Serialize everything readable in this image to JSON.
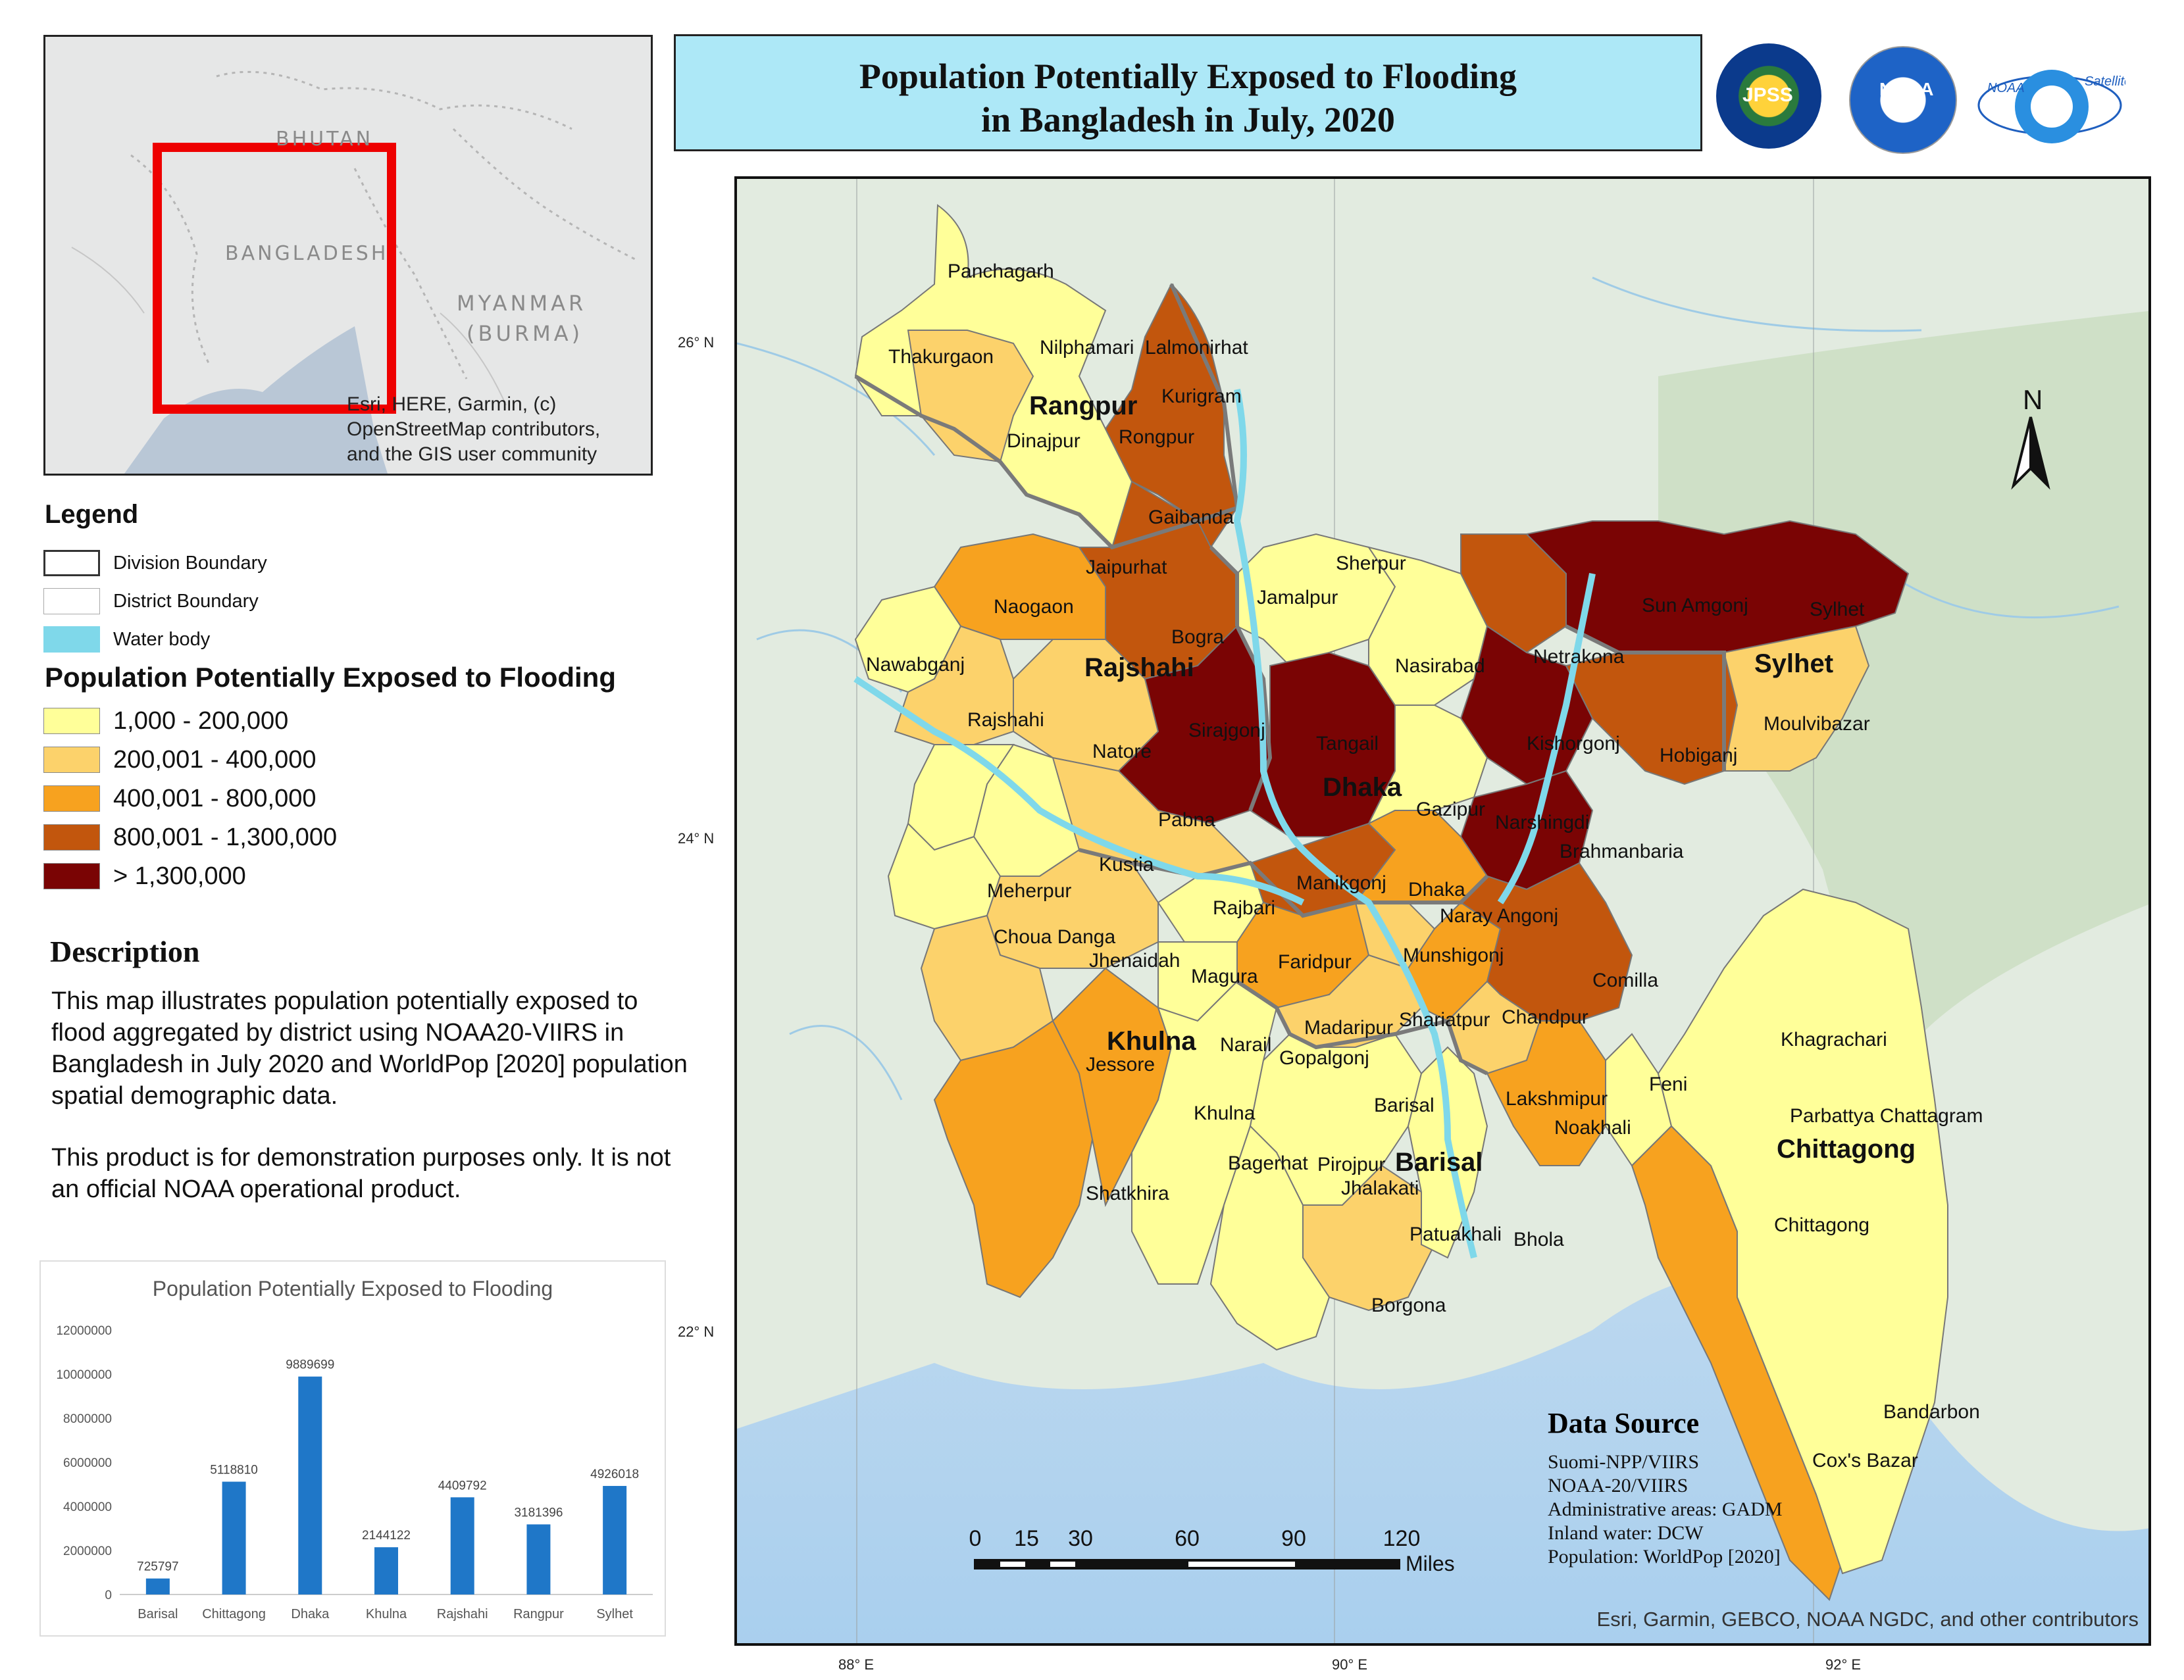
{
  "inset": {
    "labels": {
      "bhutan": "BHUTAN",
      "bangladesh": "BANGLADESH",
      "myanmar": "MYANMAR",
      "burma": "(BURMA)"
    },
    "attribution": [
      "Esri, HERE, Garmin, (c)",
      "OpenStreetMap contributors,",
      "and the GIS user community"
    ]
  },
  "legend": {
    "title": "Legend",
    "items": [
      {
        "label": "Division Boundary",
        "color": "#ffffff"
      },
      {
        "label": "District Boundary",
        "color": "#ffffff"
      },
      {
        "label": "Water body",
        "color": "#7fd8ea"
      }
    ],
    "pop_title": "Population Potentially Exposed to Flooding",
    "classes": [
      {
        "label": "1,000 - 200,000",
        "color": "#ffff99"
      },
      {
        "label": "200,001 - 400,000",
        "color": "#fcd26b"
      },
      {
        "label": "400,001 - 800,000",
        "color": "#f7a21f"
      },
      {
        "label": "800,001 - 1,300,000",
        "color": "#c2560d"
      },
      {
        "label": "> 1,300,000",
        "color": "#7a0404"
      }
    ]
  },
  "description": {
    "title": "Description",
    "para1": "This map illustrates population potentially exposed to flood aggregated by district using NOAA20-VIIRS in Bangladesh in July 2020 and WorldPop [2020] population spatial demographic data.",
    "para2": "This product is for demonstration purposes only. It is not an official NOAA operational  product."
  },
  "header": {
    "title_line1": "Population Potentially Exposed to Flooding",
    "title_line2": "in Bangladesh in July, 2020",
    "logos": [
      "JPSS",
      "NOAA",
      "NOAA Satellite Proving Ground"
    ]
  },
  "map": {
    "lat_labels": [
      "26° N",
      "24° N",
      "22° N"
    ],
    "lon_labels": [
      "88° E",
      "90° E",
      "92° E"
    ],
    "north": "N",
    "scale": {
      "ticks": [
        "0",
        "15",
        "30",
        "60",
        "90",
        "120"
      ],
      "unit": "Miles"
    },
    "divisions": [
      "Rangpur",
      "Rajshahi",
      "Sylhet",
      "Dhaka",
      "Khulna",
      "Barisal",
      "Chittagong"
    ],
    "districts": [
      "Panchagarh",
      "Thakurgaon",
      "Nilphamari",
      "Lalmonirhat",
      "Kurigram",
      "Dinajpur",
      "Rongpur",
      "Gaibanda",
      "Jaipurhat",
      "Sherpur",
      "Naogaon",
      "Jamalpur",
      "Sun Amgonj",
      "Sylhet",
      "Nawabganj",
      "Bogra",
      "Netrakona",
      "Nasirabad",
      "Rajshahi",
      "Sirajgonj",
      "Tangail",
      "Kishorgonj",
      "Hobiganj",
      "Moulvibazar",
      "Natore",
      "Gazipur",
      "Narshingdi",
      "Pabna",
      "Brahmanbaria",
      "Kustia",
      "Manikgonj",
      "Dhaka",
      "Meherpur",
      "Rajbari",
      "Naray Angonj",
      "Choua Danga",
      "Faridpur",
      "Munshigonj",
      "Jhenaidah",
      "Magura",
      "Comilla",
      "Chandpur",
      "Madaripur",
      "Shariatpur",
      "Narail",
      "Gopalgonj",
      "Jessore",
      "Khagrachari",
      "Lakshmipur",
      "Feni",
      "Barisal",
      "Noakhali",
      "Khulna",
      "Parbattya Chattagram",
      "Bagerhat",
      "Pirojpur",
      "Jhalakati",
      "Shatkhira",
      "Patuakhali",
      "Bhola",
      "Chittagong",
      "Borgona",
      "Bandarbon",
      "Cox's Bazar"
    ],
    "data_source": {
      "title": "Data Source",
      "items": [
        "Suomi-NPP/VIIRS",
        "NOAA-20/VIIRS",
        "Administrative areas: GADM",
        "Inland water: DCW",
        "Population: WorldPop [2020]"
      ]
    },
    "credits": "Esri, Garmin, GEBCO, NOAA NGDC, and other contributors"
  },
  "chart_data": {
    "type": "bar",
    "title": "Population Potentially Exposed to Flooding",
    "categories": [
      "Barisal",
      "Chittagong",
      "Dhaka",
      "Khulna",
      "Rajshahi",
      "Rangpur",
      "Sylhet"
    ],
    "values": [
      725797,
      5118810,
      9889699,
      2144122,
      4409792,
      3181396,
      4926018
    ],
    "value_labels": [
      "725797",
      "5118810",
      "9889699",
      "2144122",
      "4409792",
      "3181396",
      "4926018"
    ],
    "ylim": [
      0,
      12000000
    ],
    "yticks": [
      "0",
      "2000000",
      "4000000",
      "6000000",
      "8000000",
      "10000000",
      "12000000"
    ],
    "color": "#1f77c8",
    "grid": false
  }
}
